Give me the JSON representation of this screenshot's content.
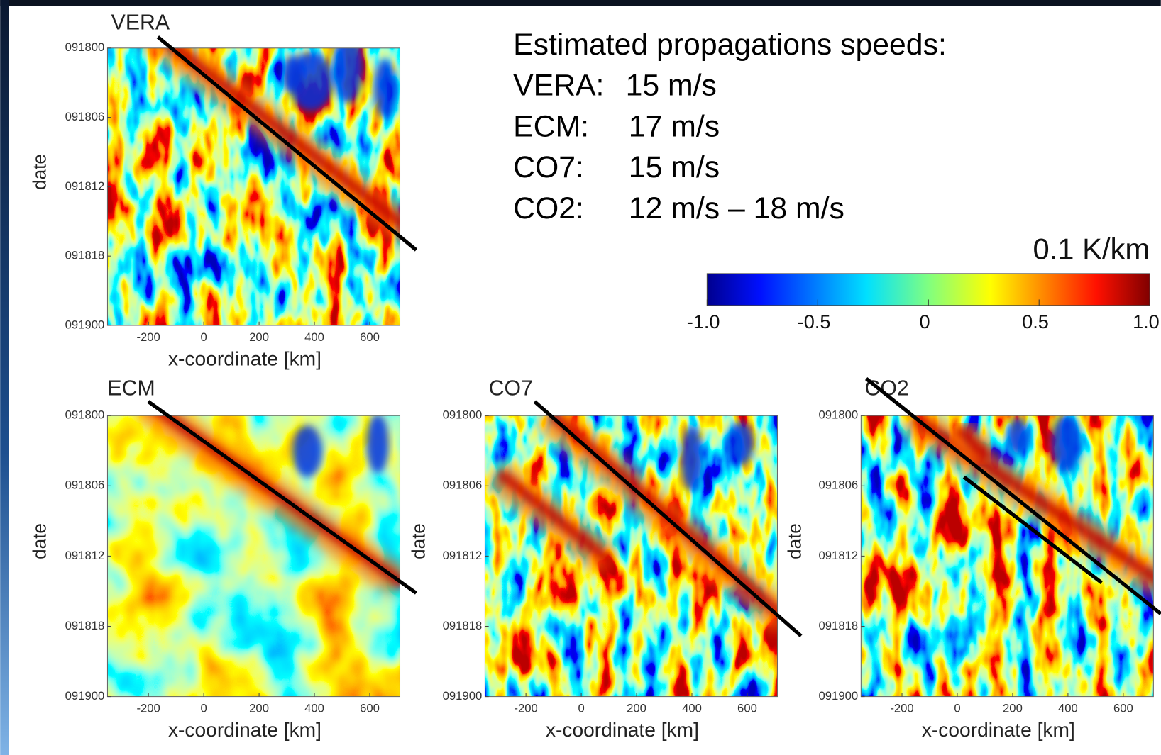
{
  "text_box": {
    "heading": "Estimated propagations speeds:",
    "items": [
      {
        "name": "VERA:",
        "speed": "15 m/s"
      },
      {
        "name": "ECM:",
        "speed": "17 m/s"
      },
      {
        "name": "CO7:",
        "speed": "15 m/s"
      },
      {
        "name": "CO2:",
        "speed": "12 m/s – 18 m/s"
      }
    ]
  },
  "colorbar": {
    "unit": "0.1 K/km",
    "lim": [
      -1,
      1
    ],
    "ticks": [
      {
        "value": -1,
        "label": "-1.0"
      },
      -0.5,
      0,
      0.5,
      {
        "value": 1,
        "label": "1.0"
      }
    ]
  },
  "panels": [
    {
      "title": "VERA",
      "ylabel": "date",
      "xlabel": "x-coordinate [km]",
      "xlim": [
        -348,
        709
      ],
      "xticks": [
        -200,
        0,
        200,
        400,
        600
      ],
      "yticks": [
        "091800",
        "091806",
        "091812",
        "091818",
        "091900"
      ]
    },
    {
      "title": "ECM",
      "ylabel": "date",
      "xlabel": "x-coordinate [km]",
      "xlim": [
        -348,
        709
      ],
      "xticks": [
        -200,
        0,
        200,
        400,
        600
      ],
      "yticks": [
        "091800",
        "091806",
        "091812",
        "091818",
        "091900"
      ]
    },
    {
      "title": "CO7",
      "ylabel": "date",
      "xlabel": "x-coordinate [km]",
      "xlim": [
        -348,
        709
      ],
      "xticks": [
        -200,
        0,
        200,
        400,
        600
      ],
      "yticks": [
        "091800",
        "091806",
        "091812",
        "091818",
        "091900"
      ]
    },
    {
      "title": "CO2",
      "ylabel": "date",
      "xlabel": "x-coordinate [km]",
      "xlim": [
        -348,
        709
      ],
      "xticks": [
        -200,
        0,
        200,
        400,
        600
      ],
      "yticks": [
        "091800",
        "091806",
        "091812",
        "091818",
        "091900"
      ]
    }
  ]
}
